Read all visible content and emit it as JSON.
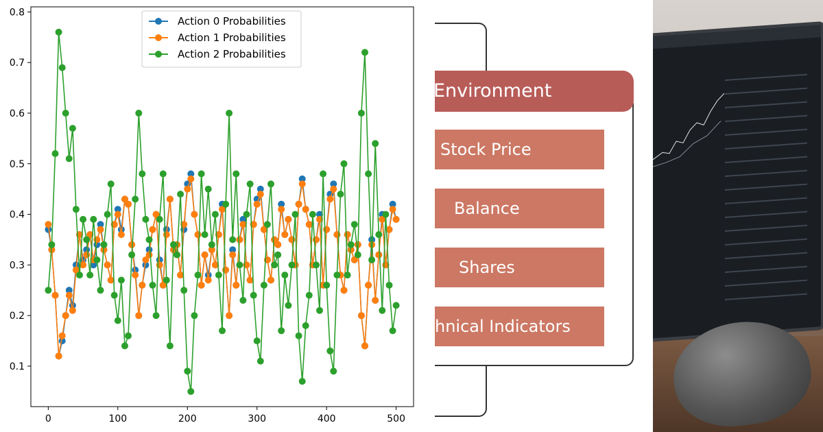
{
  "chart_data": {
    "type": "line",
    "title": "",
    "xlabel": "",
    "ylabel": "",
    "xlim": [
      -25,
      525
    ],
    "ylim": [
      0.02,
      0.81
    ],
    "x_ticks": [
      0,
      100,
      200,
      300,
      400,
      500
    ],
    "y_ticks": [
      0.1,
      0.2,
      0.3,
      0.4,
      0.5,
      0.6,
      0.7,
      0.8
    ],
    "legend_position": "top-center",
    "series": [
      {
        "name": "Action 0 Probabilities",
        "color": "#1f77b4",
        "x": [
          0,
          5,
          10,
          15,
          20,
          25,
          30,
          35,
          40,
          45,
          50,
          55,
          60,
          65,
          70,
          75,
          80,
          85,
          90,
          95,
          100,
          105,
          110,
          115,
          120,
          125,
          130,
          135,
          140,
          145,
          150,
          155,
          160,
          165,
          170,
          175,
          180,
          185,
          190,
          195,
          200,
          205,
          210,
          215,
          220,
          225,
          230,
          235,
          240,
          245,
          250,
          255,
          260,
          265,
          270,
          275,
          280,
          285,
          290,
          295,
          300,
          305,
          310,
          315,
          320,
          325,
          330,
          335,
          340,
          345,
          350,
          355,
          360,
          365,
          370,
          375,
          380,
          385,
          390,
          395,
          400,
          405,
          410,
          415,
          420,
          425,
          430,
          435,
          440,
          445,
          450,
          455,
          460,
          465,
          470,
          475,
          480,
          485,
          490,
          495,
          500
        ],
        "values": [
          0.37,
          0.33,
          0.24,
          0.12,
          0.15,
          0.2,
          0.25,
          0.22,
          0.3,
          0.36,
          0.31,
          0.33,
          0.36,
          0.3,
          0.34,
          0.38,
          0.33,
          0.3,
          0.27,
          0.38,
          0.41,
          0.37,
          0.43,
          0.42,
          0.34,
          0.29,
          0.2,
          0.26,
          0.3,
          0.33,
          0.37,
          0.4,
          0.31,
          0.26,
          0.37,
          0.43,
          0.33,
          0.34,
          0.28,
          0.37,
          0.46,
          0.48,
          0.4,
          0.36,
          0.26,
          0.32,
          0.28,
          0.33,
          0.3,
          0.36,
          0.42,
          0.29,
          0.2,
          0.33,
          0.26,
          0.35,
          0.39,
          0.3,
          0.27,
          0.38,
          0.43,
          0.45,
          0.37,
          0.31,
          0.27,
          0.35,
          0.34,
          0.42,
          0.36,
          0.39,
          0.35,
          0.3,
          0.42,
          0.47,
          0.41,
          0.38,
          0.3,
          0.35,
          0.4,
          0.26,
          0.37,
          0.44,
          0.46,
          0.36,
          0.28,
          0.25,
          0.36,
          0.33,
          0.31,
          0.34,
          0.2,
          0.14,
          0.26,
          0.35,
          0.23,
          0.32,
          0.4,
          0.3,
          0.37,
          0.42,
          0.39
        ]
      },
      {
        "name": "Action 1 Probabilities",
        "color": "#ff7f0e",
        "x": [
          0,
          5,
          10,
          15,
          20,
          25,
          30,
          35,
          40,
          45,
          50,
          55,
          60,
          65,
          70,
          75,
          80,
          85,
          90,
          95,
          100,
          105,
          110,
          115,
          120,
          125,
          130,
          135,
          140,
          145,
          150,
          155,
          160,
          165,
          170,
          175,
          180,
          185,
          190,
          195,
          200,
          205,
          210,
          215,
          220,
          225,
          230,
          235,
          240,
          245,
          250,
          255,
          260,
          265,
          270,
          275,
          280,
          285,
          290,
          295,
          300,
          305,
          310,
          315,
          320,
          325,
          330,
          335,
          340,
          345,
          350,
          355,
          360,
          365,
          370,
          375,
          380,
          385,
          390,
          395,
          400,
          405,
          410,
          415,
          420,
          425,
          430,
          435,
          440,
          445,
          450,
          455,
          460,
          465,
          470,
          475,
          480,
          485,
          490,
          495,
          500
        ],
        "values": [
          0.38,
          0.33,
          0.24,
          0.12,
          0.16,
          0.2,
          0.24,
          0.21,
          0.29,
          0.36,
          0.3,
          0.32,
          0.36,
          0.31,
          0.35,
          0.37,
          0.33,
          0.3,
          0.27,
          0.38,
          0.4,
          0.36,
          0.43,
          0.42,
          0.34,
          0.28,
          0.2,
          0.26,
          0.31,
          0.32,
          0.37,
          0.4,
          0.3,
          0.26,
          0.36,
          0.43,
          0.33,
          0.34,
          0.28,
          0.38,
          0.45,
          0.47,
          0.4,
          0.36,
          0.26,
          0.32,
          0.27,
          0.33,
          0.3,
          0.36,
          0.41,
          0.29,
          0.2,
          0.32,
          0.26,
          0.35,
          0.38,
          0.3,
          0.27,
          0.38,
          0.42,
          0.44,
          0.37,
          0.31,
          0.27,
          0.35,
          0.34,
          0.41,
          0.36,
          0.39,
          0.35,
          0.3,
          0.42,
          0.46,
          0.41,
          0.38,
          0.3,
          0.35,
          0.39,
          0.26,
          0.37,
          0.43,
          0.45,
          0.36,
          0.28,
          0.25,
          0.36,
          0.33,
          0.31,
          0.34,
          0.2,
          0.14,
          0.26,
          0.34,
          0.23,
          0.32,
          0.39,
          0.3,
          0.37,
          0.41,
          0.39
        ]
      },
      {
        "name": "Action 2 Probabilities",
        "color": "#2ca02c",
        "x": [
          0,
          5,
          10,
          15,
          20,
          25,
          30,
          35,
          40,
          45,
          50,
          55,
          60,
          65,
          70,
          75,
          80,
          85,
          90,
          95,
          100,
          105,
          110,
          115,
          120,
          125,
          130,
          135,
          140,
          145,
          150,
          155,
          160,
          165,
          170,
          175,
          180,
          185,
          190,
          195,
          200,
          205,
          210,
          215,
          220,
          225,
          230,
          235,
          240,
          245,
          250,
          255,
          260,
          265,
          270,
          275,
          280,
          285,
          290,
          295,
          300,
          305,
          310,
          315,
          320,
          325,
          330,
          335,
          340,
          345,
          350,
          355,
          360,
          365,
          370,
          375,
          380,
          385,
          390,
          395,
          400,
          405,
          410,
          415,
          420,
          425,
          430,
          435,
          440,
          445,
          450,
          455,
          460,
          465,
          470,
          475,
          480,
          485,
          490,
          495,
          500
        ],
        "values": [
          0.25,
          0.34,
          0.52,
          0.76,
          0.69,
          0.6,
          0.51,
          0.57,
          0.41,
          0.28,
          0.39,
          0.35,
          0.28,
          0.39,
          0.31,
          0.25,
          0.34,
          0.4,
          0.46,
          0.24,
          0.19,
          0.27,
          0.14,
          0.16,
          0.32,
          0.43,
          0.6,
          0.48,
          0.39,
          0.35,
          0.26,
          0.2,
          0.39,
          0.48,
          0.27,
          0.14,
          0.34,
          0.32,
          0.44,
          0.25,
          0.09,
          0.05,
          0.2,
          0.28,
          0.48,
          0.36,
          0.45,
          0.34,
          0.4,
          0.28,
          0.17,
          0.42,
          0.6,
          0.35,
          0.48,
          0.3,
          0.23,
          0.4,
          0.46,
          0.24,
          0.15,
          0.11,
          0.26,
          0.38,
          0.46,
          0.3,
          0.32,
          0.17,
          0.28,
          0.22,
          0.3,
          0.4,
          0.16,
          0.07,
          0.18,
          0.24,
          0.4,
          0.3,
          0.21,
          0.48,
          0.26,
          0.13,
          0.09,
          0.28,
          0.44,
          0.5,
          0.28,
          0.34,
          0.38,
          0.32,
          0.6,
          0.72,
          0.48,
          0.31,
          0.54,
          0.36,
          0.21,
          0.4,
          0.26,
          0.17,
          0.22
        ]
      }
    ]
  },
  "diagram": {
    "header": "Environment",
    "items": [
      "Stock Price",
      "Balance",
      "Shares",
      "hnical Indicators"
    ]
  }
}
